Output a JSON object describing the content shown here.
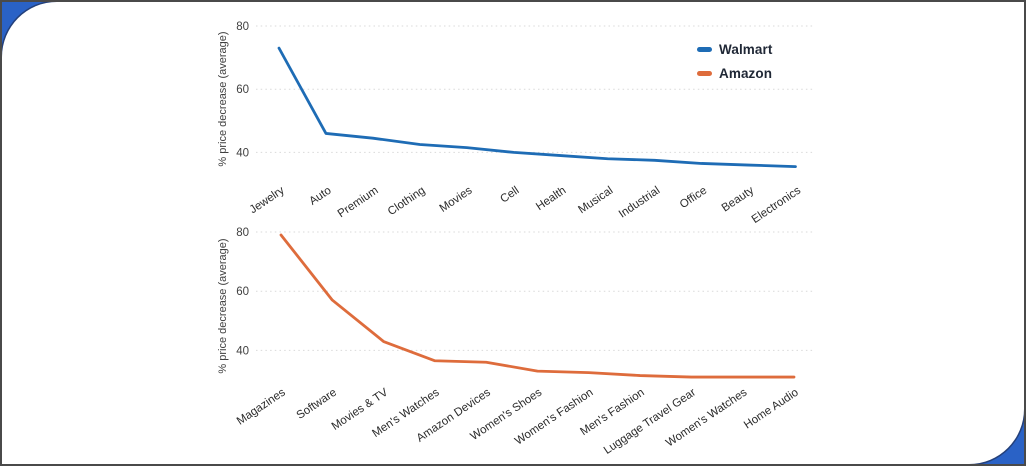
{
  "page": {
    "background_accent_color": "#2a62c6",
    "card_color": "#ffffff",
    "border_color": "#4a4a4a"
  },
  "legend": {
    "position": "top-right",
    "entries": [
      {
        "label": "Walmart",
        "color": "#1e6cb5"
      },
      {
        "label": "Amazon",
        "color": "#de6c3c"
      }
    ]
  },
  "chart_data": [
    {
      "type": "line",
      "title": "",
      "xlabel": "",
      "ylabel": "% price decrease (average)",
      "yticks": [
        40,
        60,
        80
      ],
      "ylim": [
        32,
        83
      ],
      "grid": "dotted-horizontal",
      "legend_position": "top-right",
      "categories": [
        "Jewelry",
        "Auto",
        "Premium",
        "Clothing",
        "Movies",
        "Cell",
        "Health",
        "Musical",
        "Industrial",
        "Office",
        "Beauty",
        "Electronics"
      ],
      "series": [
        {
          "name": "Walmart",
          "color": "#1e6cb5",
          "values": [
            73,
            46,
            44.5,
            42.5,
            41.5,
            40,
            39,
            38,
            37.5,
            36.5,
            36,
            35.5
          ]
        }
      ]
    },
    {
      "type": "line",
      "title": "",
      "xlabel": "",
      "ylabel": "% price decrease (average)",
      "yticks": [
        40,
        60,
        80
      ],
      "ylim": [
        28,
        81
      ],
      "grid": "dotted-horizontal",
      "legend_position": "none",
      "categories": [
        "Magazines",
        "Software",
        "Movies & TV",
        "Men's Watches",
        "Amazon Devices",
        "Women's Shoes",
        "Women's Fashion",
        "Men's Fashion",
        "Luggage Travel Gear",
        "Women's Watches",
        "Home Audio"
      ],
      "series": [
        {
          "name": "Amazon",
          "color": "#de6c3c",
          "values": [
            79,
            57,
            43,
            36.5,
            36,
            33,
            32.5,
            31.5,
            31,
            31,
            31
          ]
        }
      ]
    }
  ]
}
